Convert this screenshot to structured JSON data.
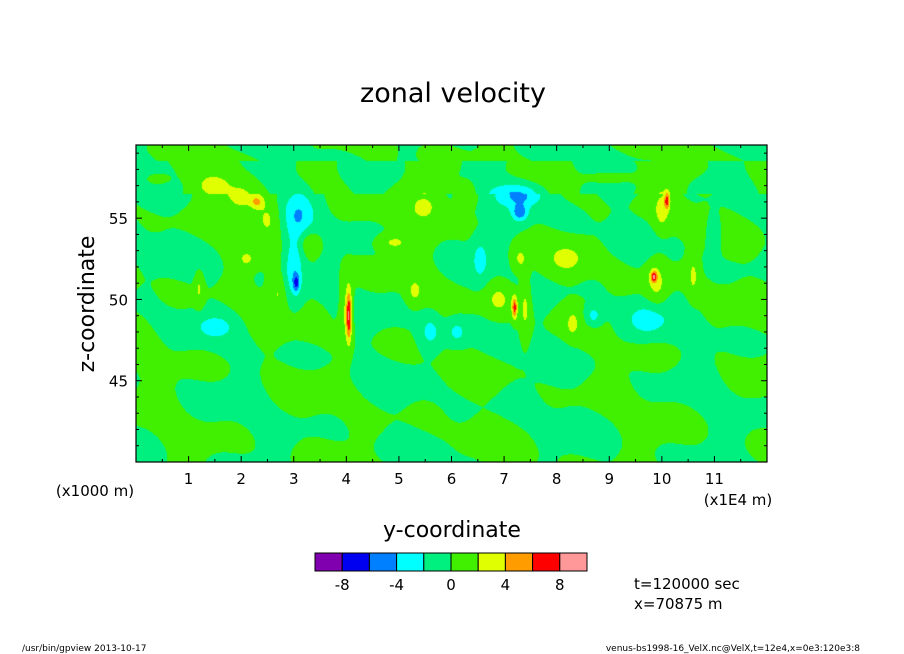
{
  "chart_data": {
    "type": "heatmap",
    "title": "zonal velocity",
    "xlabel": "y-coordinate",
    "ylabel": "z-coordinate",
    "x_scale_label": "(x1E4 m)",
    "y_scale_label": "(x1000 m)",
    "xlim": [
      0,
      12
    ],
    "ylim": [
      40,
      59.5
    ],
    "x_ticks": [
      "1",
      "2",
      "3",
      "4",
      "5",
      "6",
      "7",
      "8",
      "9",
      "10",
      "11"
    ],
    "y_ticks": [
      "45",
      "50",
      "55"
    ],
    "colorbar": {
      "levels": [
        -10,
        -8,
        -6,
        -4,
        -2,
        0,
        2,
        4,
        6,
        8,
        10
      ],
      "colors": [
        "#8000b0",
        "#0000f0",
        "#0080ff",
        "#00ffff",
        "#00f080",
        "#40f000",
        "#e0ff00",
        "#ff9c00",
        "#ff0000",
        "#ff9999"
      ],
      "tick_labels": [
        "-8",
        "-4",
        "0",
        "4",
        "8"
      ],
      "tick_values": [
        -8,
        -4,
        0,
        4,
        8
      ]
    },
    "features": [
      {
        "y": 0.4,
        "z": 57.4,
        "sy": 0.22,
        "sz": 0.35,
        "value": 2.6
      },
      {
        "y": 1.5,
        "z": 57.0,
        "sy": 0.28,
        "sz": 0.6,
        "value": 2.8
      },
      {
        "y": 2.0,
        "z": 56.3,
        "sy": 0.3,
        "sz": 0.8,
        "value": 3.0
      },
      {
        "y": 2.3,
        "z": 56.0,
        "sy": 0.12,
        "sz": 0.4,
        "value": 3.2
      },
      {
        "y": 2.5,
        "z": 55.0,
        "sy": 0.25,
        "sz": 1.2,
        "value": 2.4
      },
      {
        "y": 2.1,
        "z": 52.5,
        "sy": 0.15,
        "sz": 0.5,
        "value": 2.3
      },
      {
        "y": 1.2,
        "z": 50.7,
        "sy": 0.08,
        "sz": 1.0,
        "value": 2.2
      },
      {
        "y": 2.7,
        "z": 50.5,
        "sy": 0.18,
        "sz": 1.2,
        "value": 2.3
      },
      {
        "y": 3.1,
        "z": 55.2,
        "sy": 0.3,
        "sz": 1.5,
        "value": -3.4
      },
      {
        "y": 3.0,
        "z": 52.0,
        "sy": 0.18,
        "sz": 2.0,
        "value": -3.8
      },
      {
        "y": 3.05,
        "z": 51.0,
        "sy": 0.06,
        "sz": 0.5,
        "value": -4.5
      },
      {
        "y": 1.5,
        "z": 48.3,
        "sy": 0.3,
        "sz": 0.6,
        "value": -3.2
      },
      {
        "y": 4.0,
        "z": 49.3,
        "sy": 0.12,
        "sz": 2.0,
        "value": 2.5
      },
      {
        "y": 4.05,
        "z": 49.0,
        "sy": 0.05,
        "sz": 1.5,
        "value": 6.8
      },
      {
        "y": 3.3,
        "z": 53.5,
        "sy": 0.2,
        "sz": 0.8,
        "value": 2.3
      },
      {
        "y": 4.9,
        "z": 53.5,
        "sy": 0.3,
        "sz": 0.5,
        "value": 2.4
      },
      {
        "y": 5.5,
        "z": 55.8,
        "sy": 0.35,
        "sz": 1.2,
        "value": 2.6
      },
      {
        "y": 5.3,
        "z": 50.5,
        "sy": 0.15,
        "sz": 0.8,
        "value": 2.3
      },
      {
        "y": 5.6,
        "z": 48.0,
        "sy": 0.2,
        "sz": 1.0,
        "value": -2.8
      },
      {
        "y": 6.1,
        "z": 48.0,
        "sy": 0.2,
        "sz": 0.8,
        "value": -2.6
      },
      {
        "y": 6.3,
        "z": 56.5,
        "sy": 0.2,
        "sz": 0.8,
        "value": 2.4
      },
      {
        "y": 6.55,
        "z": 52.5,
        "sy": 0.15,
        "sz": 1.3,
        "value": -2.6
      },
      {
        "y": 7.3,
        "z": 56.4,
        "sy": 0.45,
        "sz": 0.8,
        "value": -5.0
      },
      {
        "y": 7.3,
        "z": 55.3,
        "sy": 0.15,
        "sz": 0.5,
        "value": -4.8
      },
      {
        "y": 6.9,
        "z": 50.0,
        "sy": 0.25,
        "sz": 1.0,
        "value": 2.4
      },
      {
        "y": 7.3,
        "z": 52.5,
        "sy": 0.15,
        "sz": 0.8,
        "value": 2.4
      },
      {
        "y": 7.4,
        "z": 49.5,
        "sy": 0.1,
        "sz": 1.8,
        "value": 2.5
      },
      {
        "y": 7.2,
        "z": 49.5,
        "sy": 0.05,
        "sz": 0.7,
        "value": 6.5
      },
      {
        "y": 8.2,
        "z": 52.5,
        "sy": 0.3,
        "sz": 0.8,
        "value": 2.5
      },
      {
        "y": 8.3,
        "z": 48.5,
        "sy": 0.12,
        "sz": 0.8,
        "value": 2.2
      },
      {
        "y": 8.7,
        "z": 49.0,
        "sy": 0.15,
        "sz": 0.6,
        "value": -3.0
      },
      {
        "y": 9.0,
        "z": 57.5,
        "sy": 0.4,
        "sz": 0.4,
        "value": 2.4
      },
      {
        "y": 10.0,
        "z": 55.5,
        "sy": 0.15,
        "sz": 1.2,
        "value": 2.6
      },
      {
        "y": 10.1,
        "z": 56.1,
        "sy": 0.05,
        "sz": 0.5,
        "value": 6.0
      },
      {
        "y": 9.9,
        "z": 51.0,
        "sy": 0.2,
        "sz": 1.5,
        "value": 2.6
      },
      {
        "y": 9.85,
        "z": 51.4,
        "sy": 0.06,
        "sz": 0.35,
        "value": 6.5
      },
      {
        "y": 10.6,
        "z": 51.5,
        "sy": 0.1,
        "sz": 1.2,
        "value": 2.3
      },
      {
        "y": 9.7,
        "z": 48.7,
        "sy": 0.4,
        "sz": 1.0,
        "value": -3.0
      },
      {
        "y": 11.0,
        "z": 54.0,
        "sy": 0.12,
        "sz": 1.0,
        "value": -2.4
      }
    ]
  },
  "time_label": "t=120000 sec",
  "x_label": "x=70875 m",
  "footer_left": "/usr/bin/gpview  2013-10-17",
  "footer_right": "venus-bs1998-16_VelX.nc@VelX,t=12e4,x=0e3:120e3:8"
}
